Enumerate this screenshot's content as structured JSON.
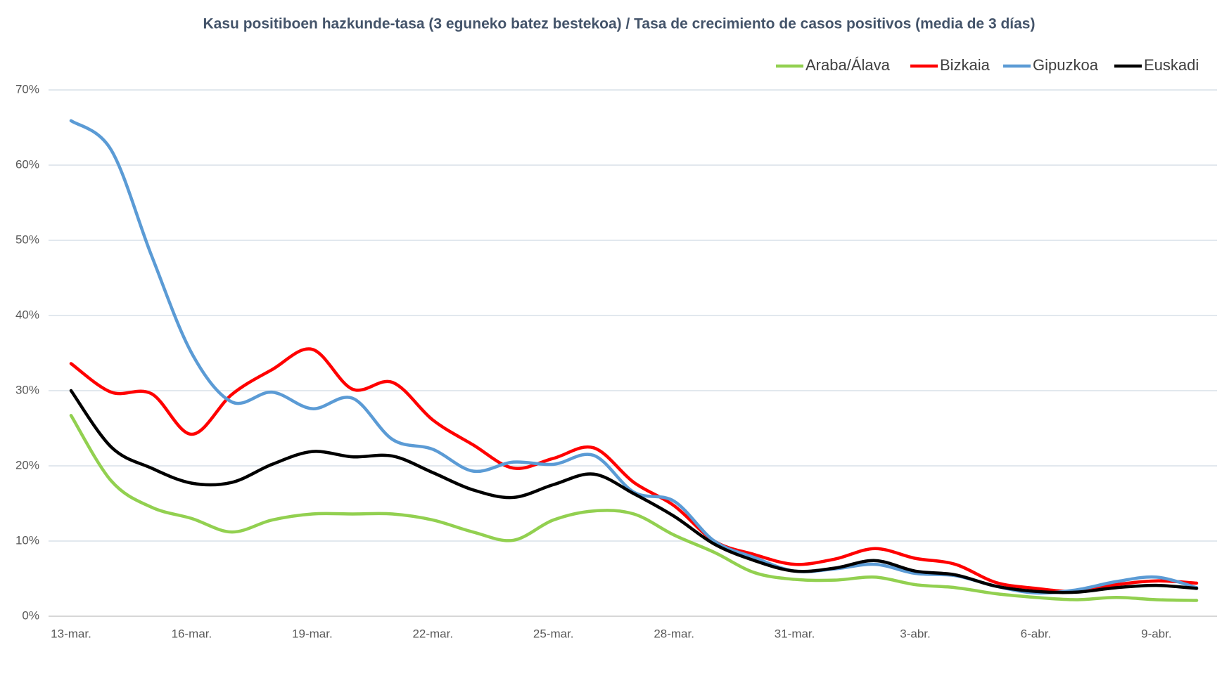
{
  "chart_data": {
    "type": "line",
    "title": "Kasu positiboen hazkunde-tasa (3 eguneko batez bestekoa) / Tasa de crecimiento de casos positivos (media de 3 días)",
    "categories": [
      "13-mar.",
      null,
      null,
      "16-mar.",
      null,
      null,
      "19-mar.",
      null,
      null,
      "22-mar.",
      null,
      null,
      "25-mar.",
      null,
      null,
      "28-mar.",
      null,
      null,
      "31-mar.",
      null,
      null,
      "3-abr.",
      null,
      null,
      "6-abr.",
      null,
      null,
      "9-abr.",
      null
    ],
    "series": [
      {
        "name": "Araba/Álava",
        "color": "#92d050",
        "values": [
          26.7,
          18,
          14.5,
          13,
          11.2,
          12.8,
          13.6,
          13.6,
          13.6,
          12.8,
          11.2,
          10.1,
          12.8,
          14,
          13.6,
          10.8,
          8.5,
          5.8,
          4.9,
          4.8,
          5.2,
          4.2,
          3.8,
          3,
          2.5,
          2.2,
          2.5,
          2.2,
          2.1
        ]
      },
      {
        "name": "Bizkaia",
        "color": "#ff0000",
        "values": [
          33.6,
          29.8,
          29.6,
          24.2,
          29.5,
          32.8,
          35.5,
          30.2,
          31.1,
          26.1,
          22.8,
          19.7,
          21,
          22.4,
          17.8,
          14.7,
          10,
          8.2,
          6.9,
          7.6,
          9,
          7.7,
          6.9,
          4.5,
          3.7,
          3.3,
          4.2,
          4.7,
          4.4
        ]
      },
      {
        "name": "Gipuzkoa",
        "color": "#5b9bd5",
        "values": [
          65.9,
          62,
          48,
          35,
          28.5,
          29.8,
          27.6,
          29,
          23.5,
          22.2,
          19.3,
          20.5,
          20.2,
          21.4,
          16.5,
          15.3,
          10,
          7.8,
          6,
          6.3,
          6.9,
          5.7,
          5.4,
          4,
          3.1,
          3.5,
          4.6,
          5.2,
          3.8
        ]
      },
      {
        "name": "Euskadi",
        "color": "#000000",
        "values": [
          30,
          22.5,
          19.7,
          17.7,
          17.8,
          20.2,
          21.9,
          21.2,
          21.3,
          19.1,
          16.8,
          15.8,
          17.5,
          18.9,
          16.3,
          13.3,
          9.6,
          7.4,
          6,
          6.4,
          7.4,
          6,
          5.5,
          4,
          3.3,
          3.2,
          3.8,
          4.1,
          3.7
        ]
      }
    ],
    "ylim": [
      0,
      70
    ],
    "yticks": [
      {
        "value": 0,
        "label": "0%"
      },
      {
        "value": 10,
        "label": "10%"
      },
      {
        "value": 20,
        "label": "20%"
      },
      {
        "value": 30,
        "label": "30%"
      },
      {
        "value": 40,
        "label": "40%"
      },
      {
        "value": 50,
        "label": "50%"
      },
      {
        "value": 60,
        "label": "60%"
      },
      {
        "value": 70,
        "label": "70%"
      }
    ],
    "grid": true,
    "legend": "top-right"
  }
}
